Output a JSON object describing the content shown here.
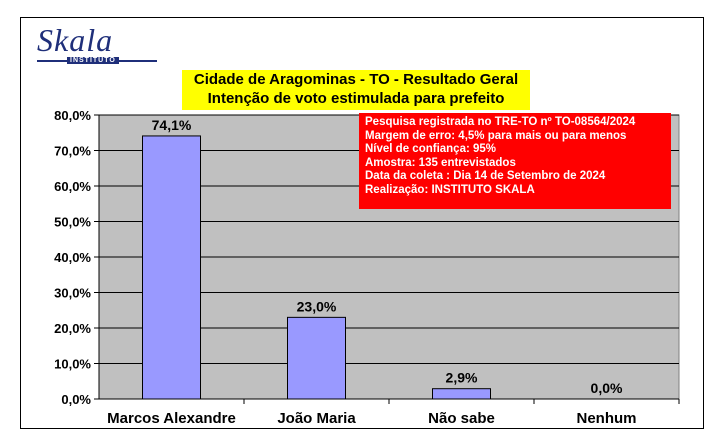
{
  "logo": {
    "name": "Skala",
    "sub": "INSTITUTO"
  },
  "title_lines": [
    "Cidade de Aragominas - TO - Resultado Geral",
    "Intenção de voto estimulada para prefeito"
  ],
  "info_lines": [
    "Pesquisa registrada no TRE-TO nº TO-08564/2024",
    "Margem de erro: 4,5% para mais ou para menos",
    "Nível de confiança: 95%",
    "Amostra: 135 entrevistados",
    "Data da coleta : Dia 14 de Setembro de 2024",
    "Realização: INSTITUTO SKALA"
  ],
  "colors": {
    "bar": "#9999ff",
    "plot_bg": "#c0c0c0",
    "title_bg": "#ffff00",
    "info_bg": "#ff0000"
  },
  "chart_data": {
    "type": "bar",
    "categories": [
      "Marcos Alexandre",
      "João Maria",
      "Não sabe",
      "Nenhum"
    ],
    "values": [
      74.1,
      23.0,
      2.9,
      0.0
    ],
    "data_labels": [
      "74,1%",
      "23,0%",
      "2,9%",
      "0,0%"
    ],
    "y_ticks": [
      "0,0%",
      "10,0%",
      "20,0%",
      "30,0%",
      "40,0%",
      "50,0%",
      "60,0%",
      "70,0%",
      "80,0%"
    ],
    "ylim": [
      0,
      80
    ],
    "grid": true,
    "title": "Cidade de Aragominas - TO - Resultado Geral",
    "subtitle": "Intenção de voto estimulada para prefeito"
  }
}
